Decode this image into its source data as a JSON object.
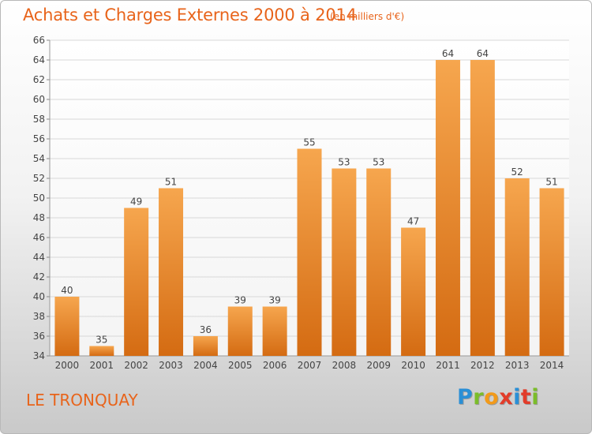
{
  "header": {
    "title": "Achats et Charges Externes 2000 à 2014",
    "subtitle": "(en milliers d'€)"
  },
  "footer": {
    "place": "LE TRONQUAY",
    "logo_letters": [
      "P",
      "r",
      "o",
      "x",
      "i",
      "t",
      "i"
    ]
  },
  "colors": {
    "accent": "#e8641b",
    "bar_top": "#f6a64e",
    "bar_bottom": "#d46b12",
    "grid": "#d8d8d8"
  },
  "chart_data": {
    "type": "bar",
    "title": "Achats et Charges Externes 2000 à 2014",
    "subtitle": "(en milliers d'€)",
    "categories": [
      "2000",
      "2001",
      "2002",
      "2003",
      "2004",
      "2005",
      "2006",
      "2007",
      "2008",
      "2009",
      "2010",
      "2011",
      "2012",
      "2013",
      "2014"
    ],
    "values": [
      40,
      35,
      49,
      51,
      36,
      39,
      39,
      55,
      53,
      53,
      47,
      64,
      64,
      52,
      51
    ],
    "xlabel": "",
    "ylabel": "",
    "ylim": [
      34,
      66
    ],
    "yticks": [
      34,
      36,
      38,
      40,
      42,
      44,
      46,
      48,
      50,
      52,
      54,
      56,
      58,
      60,
      62,
      64,
      66
    ],
    "grid": true,
    "legend": "none",
    "data_labels": true
  }
}
